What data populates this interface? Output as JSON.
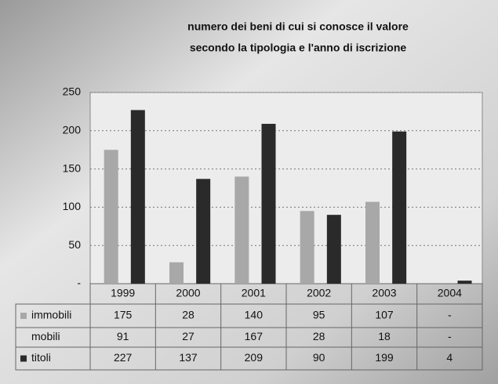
{
  "chart_data": {
    "type": "bar",
    "title": [
      "numero dei beni di cui si conosce il valore",
      "secondo la tipologia e l'anno di iscrizione"
    ],
    "categories": [
      "1999",
      "2000",
      "2001",
      "2002",
      "2003",
      "2004"
    ],
    "series": [
      {
        "name": "immobili",
        "color": "#a8a8a8",
        "values": [
          175,
          28,
          140,
          95,
          107,
          null
        ],
        "value_labels": [
          "175",
          "28",
          "140",
          "95",
          "107",
          "-"
        ]
      },
      {
        "name": "mobili",
        "values": [
          91,
          27,
          167,
          28,
          18,
          null
        ],
        "value_labels": [
          "91",
          "27",
          "167",
          "28",
          "18",
          "-"
        ]
      },
      {
        "name": "titoli",
        "color": "#2a2a2a",
        "values": [
          227,
          137,
          209,
          90,
          199,
          4
        ],
        "value_labels": [
          "227",
          "137",
          "209",
          "90",
          "199",
          "4"
        ]
      }
    ],
    "ylim": [
      0,
      250
    ],
    "yticks": [
      {
        "value": 0,
        "label": "-"
      },
      50,
      100,
      150,
      200,
      250
    ],
    "grid": true
  }
}
